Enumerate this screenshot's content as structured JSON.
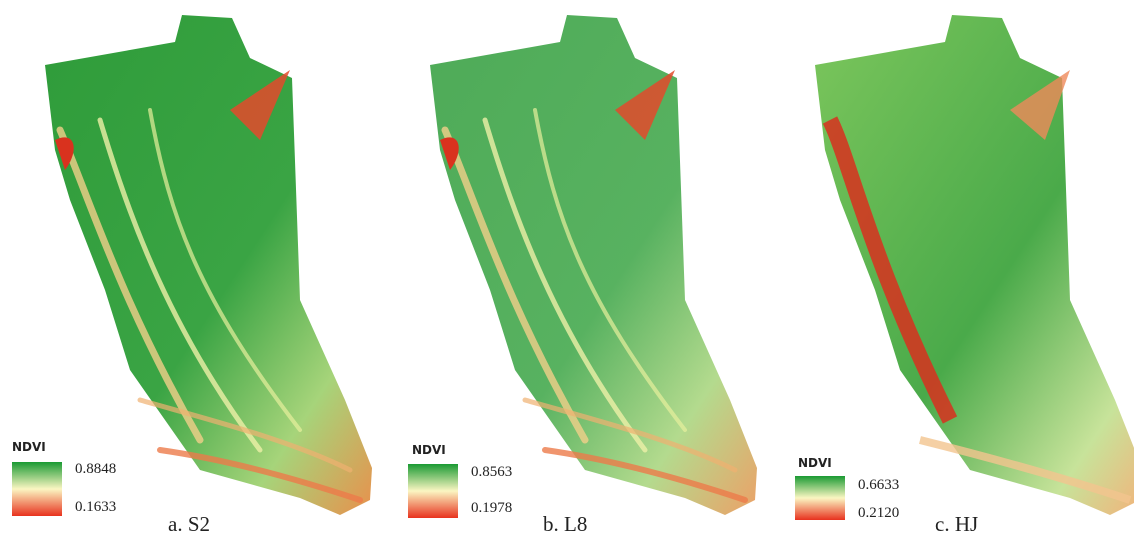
{
  "panels": [
    {
      "caption": "a. S2",
      "legend": {
        "title": "NDVI",
        "max": "0.8848",
        "min": "0.1633"
      }
    },
    {
      "caption": "b. L8",
      "legend": {
        "title": "NDVI",
        "max": "0.8563",
        "min": "0.1978"
      }
    },
    {
      "caption": "c. HJ",
      "legend": {
        "title": "NDVI",
        "max": "0.6633",
        "min": "0.2120"
      }
    }
  ]
}
